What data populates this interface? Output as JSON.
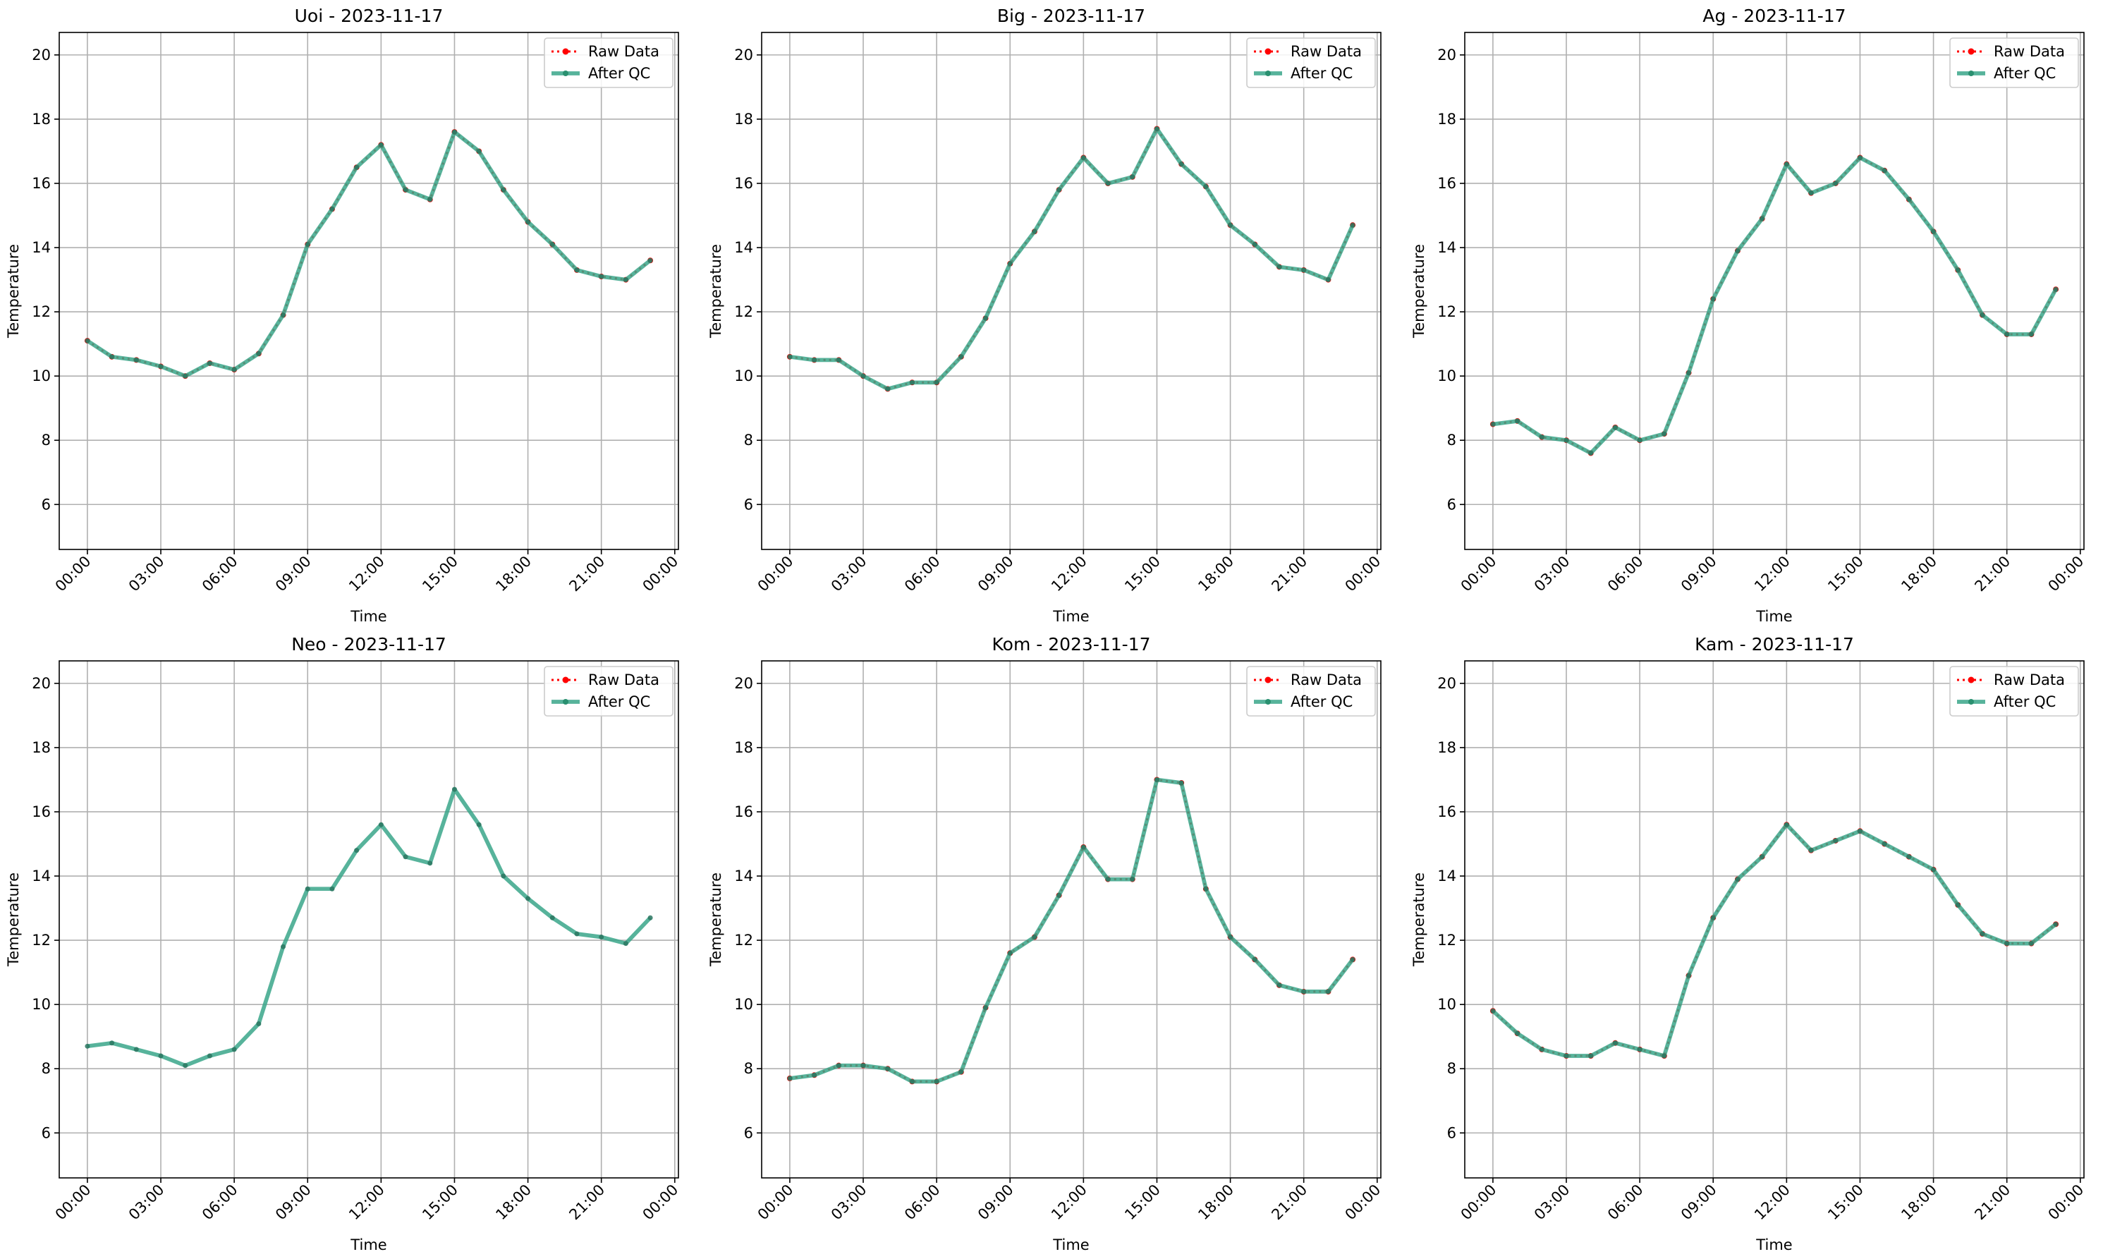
{
  "chart_data": [
    {
      "type": "line",
      "title": "Uoi - 2023-11-17",
      "xlabel": "Time",
      "ylabel": "Temperature",
      "x": [
        0,
        1,
        2,
        3,
        4,
        5,
        6,
        7,
        8,
        9,
        10,
        11,
        12,
        13,
        14,
        15,
        16,
        17,
        18,
        19,
        20,
        21,
        22,
        23
      ],
      "xlim": [
        -1.15,
        24.15
      ],
      "xticks": [
        {
          "value": 0,
          "label": "00:00"
        },
        {
          "value": 3,
          "label": "03:00"
        },
        {
          "value": 6,
          "label": "06:00"
        },
        {
          "value": 9,
          "label": "09:00"
        },
        {
          "value": 12,
          "label": "12:00"
        },
        {
          "value": 15,
          "label": "15:00"
        },
        {
          "value": 18,
          "label": "18:00"
        },
        {
          "value": 21,
          "label": "21:00"
        },
        {
          "value": 24,
          "label": "00:00"
        }
      ],
      "ylim": [
        4.6,
        20.7
      ],
      "yticks": [
        6,
        8,
        10,
        12,
        14,
        16,
        18,
        20
      ],
      "grid": true,
      "legend": "upper right",
      "series": [
        {
          "name": "Raw Data",
          "color": "#ff0000",
          "values": [
            11.1,
            10.6,
            10.5,
            10.3,
            10.0,
            10.4,
            10.2,
            10.7,
            11.9,
            14.1,
            15.2,
            16.5,
            17.2,
            15.8,
            15.5,
            17.6,
            17.0,
            15.8,
            14.8,
            14.1,
            13.3,
            13.1,
            13.0,
            13.6
          ]
        },
        {
          "name": "After QC",
          "color": "#3aa68a",
          "values": [
            11.1,
            10.6,
            10.5,
            10.3,
            10.0,
            10.4,
            10.2,
            10.7,
            11.9,
            14.1,
            15.2,
            16.5,
            17.2,
            15.8,
            15.5,
            17.6,
            17.0,
            15.8,
            14.8,
            14.1,
            13.3,
            13.1,
            13.0,
            13.6
          ]
        }
      ]
    },
    {
      "type": "line",
      "title": "Big - 2023-11-17",
      "xlabel": "Time",
      "ylabel": "Temperature",
      "x": [
        0,
        1,
        2,
        3,
        4,
        5,
        6,
        7,
        8,
        9,
        10,
        11,
        12,
        13,
        14,
        15,
        16,
        17,
        18,
        19,
        20,
        21,
        22,
        23
      ],
      "xlim": [
        -1.15,
        24.15
      ],
      "xticks": [
        {
          "value": 0,
          "label": "00:00"
        },
        {
          "value": 3,
          "label": "03:00"
        },
        {
          "value": 6,
          "label": "06:00"
        },
        {
          "value": 9,
          "label": "09:00"
        },
        {
          "value": 12,
          "label": "12:00"
        },
        {
          "value": 15,
          "label": "15:00"
        },
        {
          "value": 18,
          "label": "18:00"
        },
        {
          "value": 21,
          "label": "21:00"
        },
        {
          "value": 24,
          "label": "00:00"
        }
      ],
      "ylim": [
        4.6,
        20.7
      ],
      "yticks": [
        6,
        8,
        10,
        12,
        14,
        16,
        18,
        20
      ],
      "grid": true,
      "legend": "upper right",
      "series": [
        {
          "name": "Raw Data",
          "color": "#ff0000",
          "values": [
            10.6,
            10.5,
            10.5,
            10.0,
            9.6,
            9.8,
            9.8,
            10.6,
            11.8,
            13.5,
            14.5,
            15.8,
            16.8,
            16.0,
            16.2,
            17.7,
            16.6,
            15.9,
            14.7,
            14.1,
            13.4,
            13.3,
            13.0,
            14.7
          ]
        },
        {
          "name": "After QC",
          "color": "#3aa68a",
          "values": [
            10.6,
            10.5,
            10.5,
            10.0,
            9.6,
            9.8,
            9.8,
            10.6,
            11.8,
            13.5,
            14.5,
            15.8,
            16.8,
            16.0,
            16.2,
            17.7,
            16.6,
            15.9,
            14.7,
            14.1,
            13.4,
            13.3,
            13.0,
            14.7
          ]
        }
      ]
    },
    {
      "type": "line",
      "title": "Ag - 2023-11-17",
      "xlabel": "Time",
      "ylabel": "Temperature",
      "x": [
        0,
        1,
        2,
        3,
        4,
        5,
        6,
        7,
        8,
        9,
        10,
        11,
        12,
        13,
        14,
        15,
        16,
        17,
        18,
        19,
        20,
        21,
        22,
        23
      ],
      "xlim": [
        -1.15,
        24.15
      ],
      "xticks": [
        {
          "value": 0,
          "label": "00:00"
        },
        {
          "value": 3,
          "label": "03:00"
        },
        {
          "value": 6,
          "label": "06:00"
        },
        {
          "value": 9,
          "label": "09:00"
        },
        {
          "value": 12,
          "label": "12:00"
        },
        {
          "value": 15,
          "label": "15:00"
        },
        {
          "value": 18,
          "label": "18:00"
        },
        {
          "value": 21,
          "label": "21:00"
        },
        {
          "value": 24,
          "label": "00:00"
        }
      ],
      "ylim": [
        4.6,
        20.7
      ],
      "yticks": [
        6,
        8,
        10,
        12,
        14,
        16,
        18,
        20
      ],
      "grid": true,
      "legend": "upper right",
      "series": [
        {
          "name": "Raw Data",
          "color": "#ff0000",
          "values": [
            8.5,
            8.6,
            8.1,
            8.0,
            7.6,
            8.4,
            8.0,
            8.2,
            10.1,
            12.4,
            13.9,
            14.9,
            16.6,
            15.7,
            16.0,
            16.8,
            16.4,
            15.5,
            14.5,
            13.3,
            11.9,
            11.3,
            11.3,
            12.7
          ]
        },
        {
          "name": "After QC",
          "color": "#3aa68a",
          "values": [
            8.5,
            8.6,
            8.1,
            8.0,
            7.6,
            8.4,
            8.0,
            8.2,
            10.1,
            12.4,
            13.9,
            14.9,
            16.6,
            15.7,
            16.0,
            16.8,
            16.4,
            15.5,
            14.5,
            13.3,
            11.9,
            11.3,
            11.3,
            12.7
          ]
        }
      ]
    },
    {
      "type": "line",
      "title": "Neo - 2023-11-17",
      "xlabel": "Time",
      "ylabel": "Temperature",
      "x": [
        0,
        1,
        2,
        3,
        4,
        5,
        6,
        7,
        8,
        9,
        10,
        11,
        12,
        13,
        14,
        15,
        16,
        17,
        18,
        19,
        20,
        21,
        22,
        23
      ],
      "xlim": [
        -1.15,
        24.15
      ],
      "xticks": [
        {
          "value": 0,
          "label": "00:00"
        },
        {
          "value": 3,
          "label": "03:00"
        },
        {
          "value": 6,
          "label": "06:00"
        },
        {
          "value": 9,
          "label": "09:00"
        },
        {
          "value": 12,
          "label": "12:00"
        },
        {
          "value": 15,
          "label": "15:00"
        },
        {
          "value": 18,
          "label": "18:00"
        },
        {
          "value": 21,
          "label": "21:00"
        },
        {
          "value": 24,
          "label": "00:00"
        }
      ],
      "ylim": [
        4.6,
        20.7
      ],
      "yticks": [
        6,
        8,
        10,
        12,
        14,
        16,
        18,
        20
      ],
      "grid": true,
      "legend": "upper right",
      "series": [
        {
          "name": "Raw Data",
          "color": "#ff0000",
          "values": [
            null,
            null,
            null,
            null,
            null,
            null,
            null,
            null,
            null,
            null,
            null,
            null,
            null,
            null,
            null,
            null,
            null,
            null,
            null,
            null,
            null,
            null,
            null,
            null
          ]
        },
        {
          "name": "After QC",
          "color": "#3aa68a",
          "values": [
            8.7,
            8.8,
            8.6,
            8.4,
            8.1,
            8.4,
            8.6,
            9.4,
            11.8,
            13.6,
            13.6,
            14.8,
            15.6,
            14.6,
            14.4,
            16.7,
            15.6,
            14.0,
            13.3,
            12.7,
            12.2,
            12.1,
            11.9,
            12.7
          ]
        }
      ]
    },
    {
      "type": "line",
      "title": "Kom - 2023-11-17",
      "xlabel": "Time",
      "ylabel": "Temperature",
      "x": [
        0,
        1,
        2,
        3,
        4,
        5,
        6,
        7,
        8,
        9,
        10,
        11,
        12,
        13,
        14,
        15,
        16,
        17,
        18,
        19,
        20,
        21,
        22,
        23
      ],
      "xlim": [
        -1.15,
        24.15
      ],
      "xticks": [
        {
          "value": 0,
          "label": "00:00"
        },
        {
          "value": 3,
          "label": "03:00"
        },
        {
          "value": 6,
          "label": "06:00"
        },
        {
          "value": 9,
          "label": "09:00"
        },
        {
          "value": 12,
          "label": "12:00"
        },
        {
          "value": 15,
          "label": "15:00"
        },
        {
          "value": 18,
          "label": "18:00"
        },
        {
          "value": 21,
          "label": "21:00"
        },
        {
          "value": 24,
          "label": "00:00"
        }
      ],
      "ylim": [
        4.6,
        20.7
      ],
      "yticks": [
        6,
        8,
        10,
        12,
        14,
        16,
        18,
        20
      ],
      "grid": true,
      "legend": "upper right",
      "series": [
        {
          "name": "Raw Data",
          "color": "#ff0000",
          "values": [
            7.7,
            7.8,
            8.1,
            8.1,
            8.0,
            7.6,
            7.6,
            7.9,
            9.9,
            11.6,
            12.1,
            13.4,
            14.9,
            13.9,
            13.9,
            17.0,
            16.9,
            13.6,
            12.1,
            11.4,
            10.6,
            10.4,
            10.4,
            11.4
          ]
        },
        {
          "name": "After QC",
          "color": "#3aa68a",
          "values": [
            7.7,
            7.8,
            8.1,
            8.1,
            8.0,
            7.6,
            7.6,
            7.9,
            9.9,
            11.6,
            12.1,
            13.4,
            14.9,
            13.9,
            13.9,
            17.0,
            16.9,
            13.6,
            12.1,
            11.4,
            10.6,
            10.4,
            10.4,
            11.4
          ]
        }
      ]
    },
    {
      "type": "line",
      "title": "Kam - 2023-11-17",
      "xlabel": "Time",
      "ylabel": "Temperature",
      "x": [
        0,
        1,
        2,
        3,
        4,
        5,
        6,
        7,
        8,
        9,
        10,
        11,
        12,
        13,
        14,
        15,
        16,
        17,
        18,
        19,
        20,
        21,
        22,
        23
      ],
      "xlim": [
        -1.15,
        24.15
      ],
      "xticks": [
        {
          "value": 0,
          "label": "00:00"
        },
        {
          "value": 3,
          "label": "03:00"
        },
        {
          "value": 6,
          "label": "06:00"
        },
        {
          "value": 9,
          "label": "09:00"
        },
        {
          "value": 12,
          "label": "12:00"
        },
        {
          "value": 15,
          "label": "15:00"
        },
        {
          "value": 18,
          "label": "18:00"
        },
        {
          "value": 21,
          "label": "21:00"
        },
        {
          "value": 24,
          "label": "00:00"
        }
      ],
      "ylim": [
        4.6,
        20.7
      ],
      "yticks": [
        6,
        8,
        10,
        12,
        14,
        16,
        18,
        20
      ],
      "grid": true,
      "legend": "upper right",
      "series": [
        {
          "name": "Raw Data",
          "color": "#ff0000",
          "values": [
            9.8,
            9.1,
            8.6,
            8.4,
            8.4,
            8.8,
            8.6,
            8.4,
            10.9,
            12.7,
            13.9,
            14.6,
            15.6,
            14.8,
            15.1,
            15.4,
            15.0,
            14.6,
            14.2,
            13.1,
            12.2,
            11.9,
            11.9,
            12.5
          ]
        },
        {
          "name": "After QC",
          "color": "#3aa68a",
          "values": [
            9.8,
            9.1,
            8.6,
            8.4,
            8.4,
            8.8,
            8.6,
            8.4,
            10.9,
            12.7,
            13.9,
            14.6,
            15.6,
            14.8,
            15.1,
            15.4,
            15.0,
            14.6,
            14.2,
            13.1,
            12.2,
            11.9,
            11.9,
            12.5
          ]
        }
      ]
    }
  ]
}
